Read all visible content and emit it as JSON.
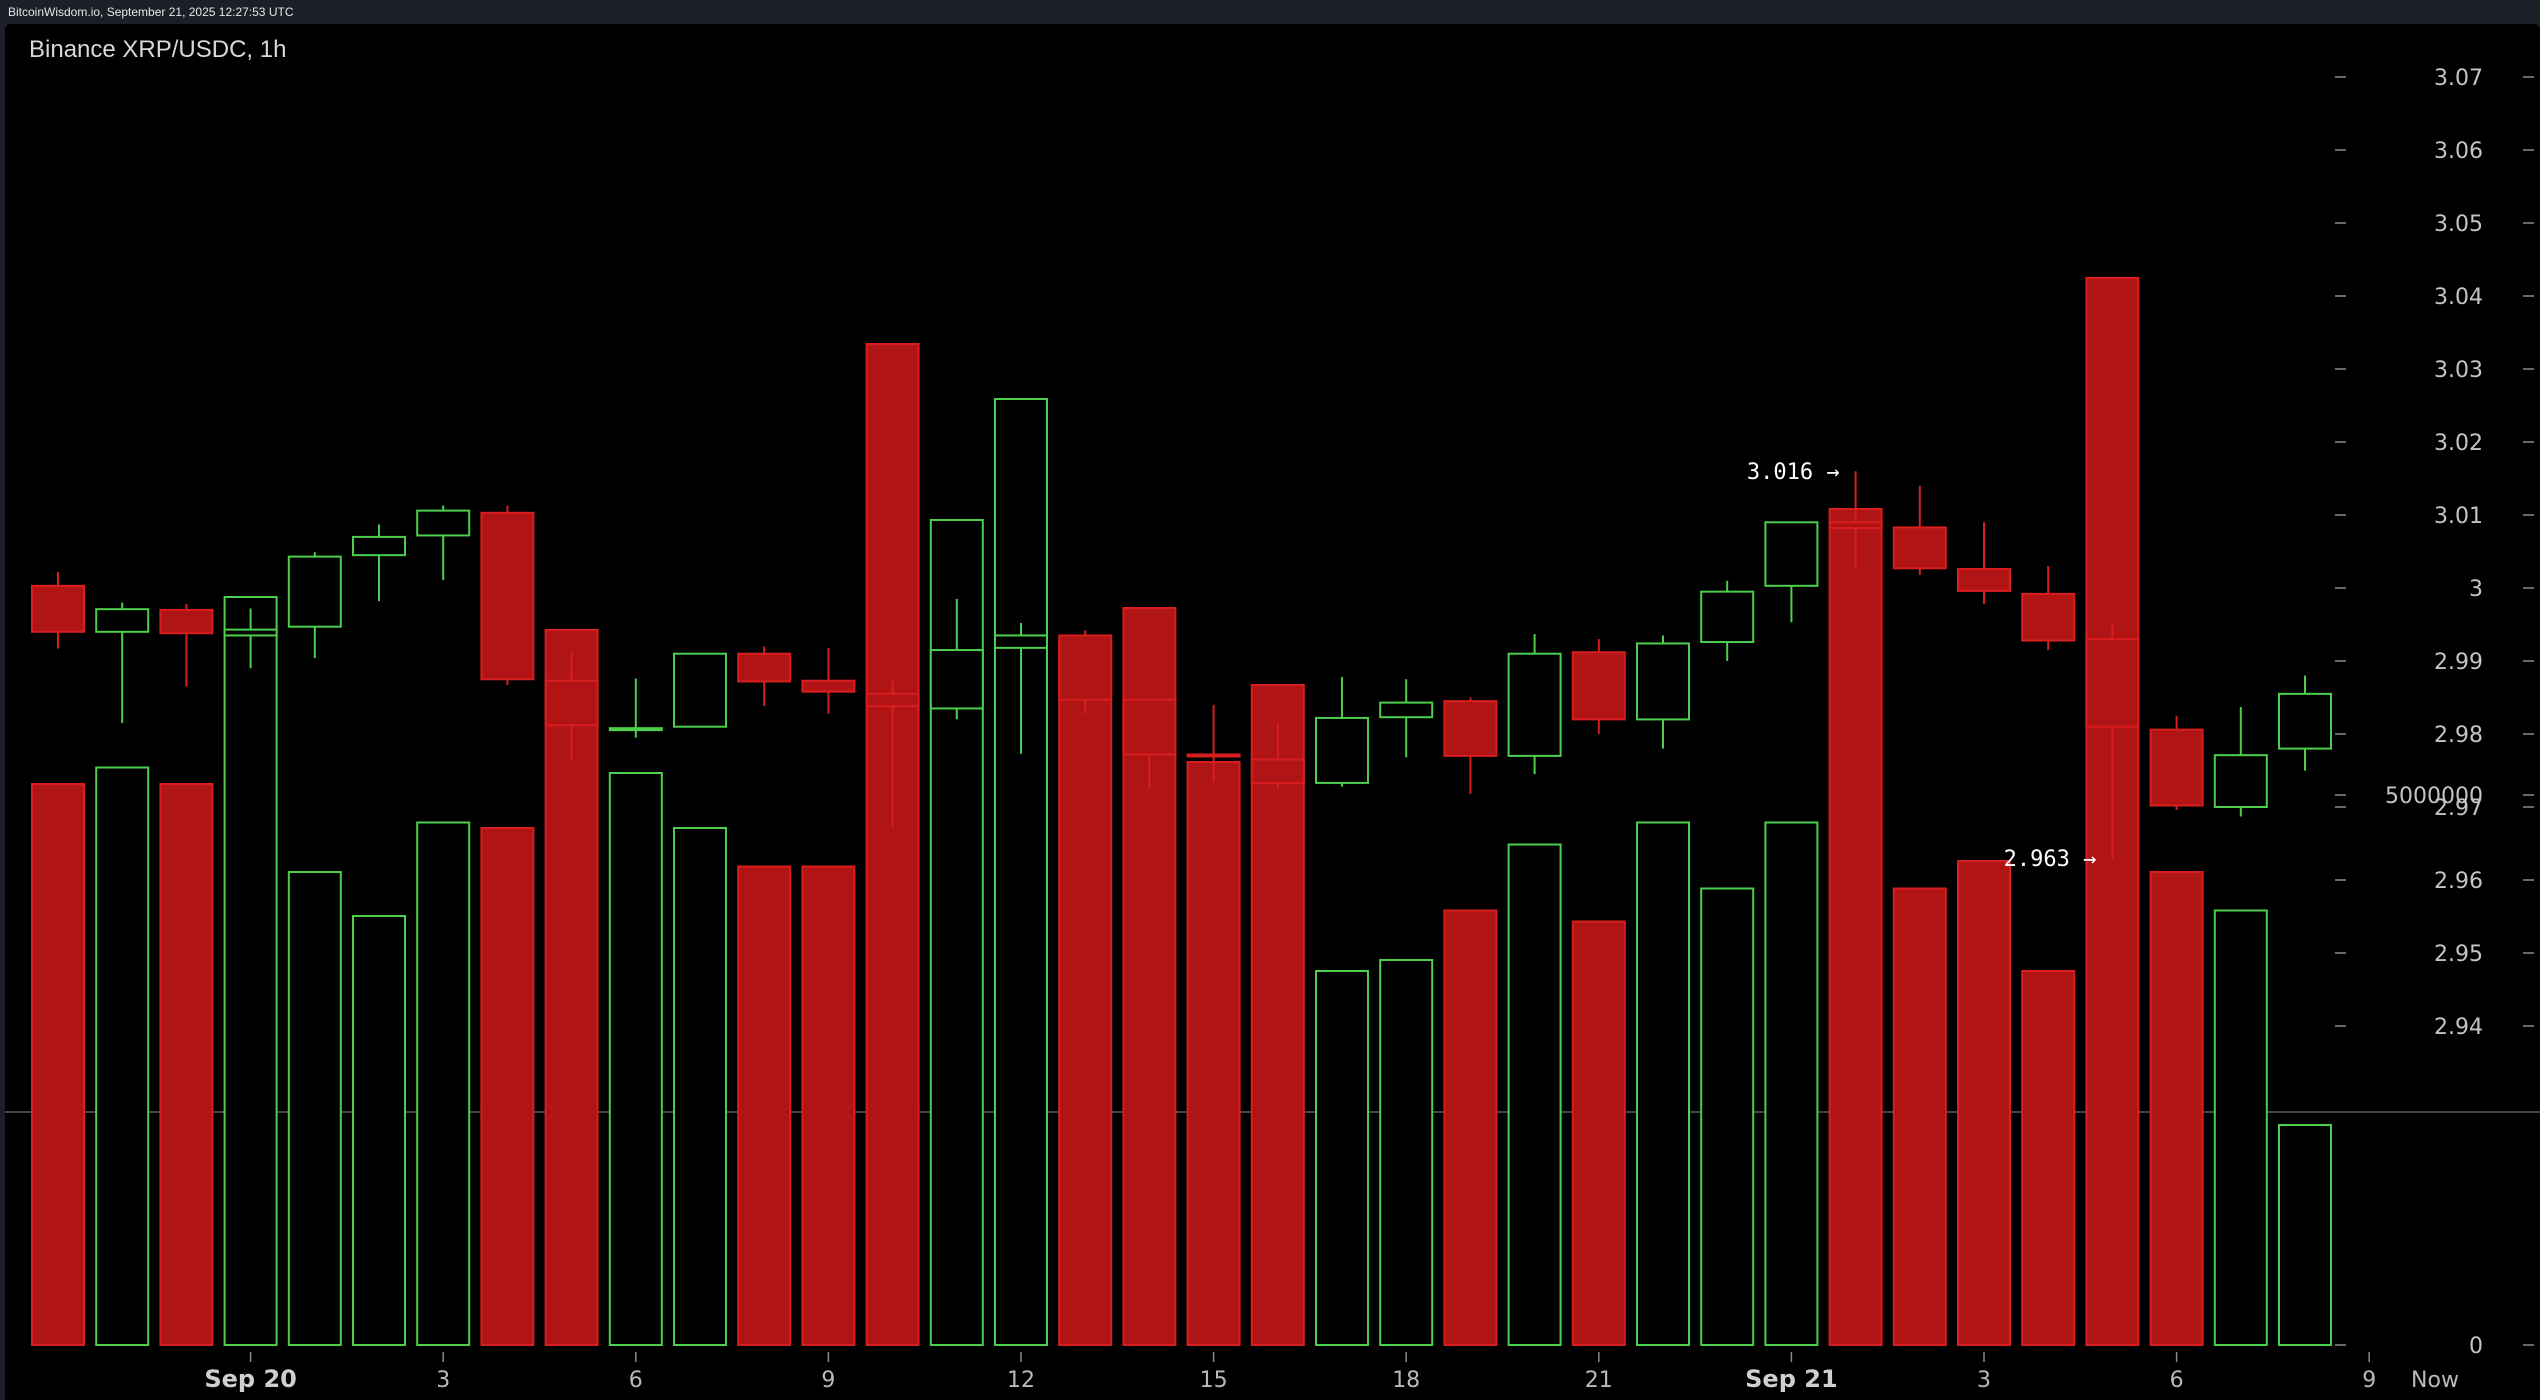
{
  "header": {
    "source_line": "BitcoinWisdom.io, September 21, 2025 12:27:53 UTC"
  },
  "colors": {
    "up": "#4ccf4c",
    "down": "#b01414",
    "down_stroke": "#d81e1e",
    "axis": "#8a8a8a"
  },
  "chart_data": {
    "type": "candlestick",
    "title": "Binance XRP/USDC, 1h",
    "price_ylim": [
      2.93,
      3.08
    ],
    "price_ticks": [
      "3.07",
      "3.06",
      "3.05",
      "3.04",
      "3.03",
      "3.02",
      "3.01",
      "3",
      "2.99",
      "2.98",
      "2.97",
      "2.96",
      "2.95",
      "2.94"
    ],
    "volume_ticks": [
      "5000000",
      "0"
    ],
    "volume_ylim": [
      0,
      10000000
    ],
    "x_ticks": [
      {
        "label": "Sep 20",
        "at": 3,
        "bold": true
      },
      {
        "label": "3",
        "at": 6,
        "bold": false
      },
      {
        "label": "6",
        "at": 9,
        "bold": false
      },
      {
        "label": "9",
        "at": 12,
        "bold": false
      },
      {
        "label": "12",
        "at": 15,
        "bold": false
      },
      {
        "label": "15",
        "at": 18,
        "bold": false
      },
      {
        "label": "18",
        "at": 21,
        "bold": false
      },
      {
        "label": "21",
        "at": 24,
        "bold": false
      },
      {
        "label": "Sep 21",
        "at": 27,
        "bold": true
      },
      {
        "label": "3",
        "at": 30,
        "bold": false
      },
      {
        "label": "6",
        "at": 33,
        "bold": false
      },
      {
        "label": "9",
        "at": 36,
        "bold": false
      },
      {
        "label": "Now",
        "at": 37.1,
        "bold": false
      }
    ],
    "candles": [
      {
        "o": 3.0003,
        "h": 3.0022,
        "l": 2.9917,
        "c": 2.994,
        "v": 5100000
      },
      {
        "o": 2.994,
        "h": 2.998,
        "l": 2.9815,
        "c": 2.9971,
        "v": 5250000
      },
      {
        "o": 2.997,
        "h": 2.9978,
        "l": 2.9865,
        "c": 2.9938,
        "v": 5100000
      },
      {
        "o": 2.9935,
        "h": 2.9972,
        "l": 2.989,
        "c": 2.9943,
        "v": 6800000
      },
      {
        "o": 2.9947,
        "h": 3.0049,
        "l": 2.9904,
        "c": 3.0043,
        "v": 4300000
      },
      {
        "o": 3.0045,
        "h": 3.0087,
        "l": 2.9982,
        "c": 3.007,
        "v": 3900000
      },
      {
        "o": 3.0072,
        "h": 3.0113,
        "l": 3.0011,
        "c": 3.0106,
        "v": 4750000
      },
      {
        "o": 3.0103,
        "h": 3.0113,
        "l": 2.9867,
        "c": 2.9875,
        "v": 4700000
      },
      {
        "o": 2.9873,
        "h": 2.9912,
        "l": 2.9764,
        "c": 2.9812,
        "v": 6500000
      },
      {
        "o": 2.9806,
        "h": 2.9876,
        "l": 2.9795,
        "c": 2.9808,
        "v": 5200000
      },
      {
        "o": 2.981,
        "h": 2.991,
        "l": 2.981,
        "c": 2.991,
        "v": 4700000
      },
      {
        "o": 2.991,
        "h": 2.992,
        "l": 2.9838,
        "c": 2.9872,
        "v": 4350000
      },
      {
        "o": 2.9873,
        "h": 2.9918,
        "l": 2.9828,
        "c": 2.9858,
        "v": 4350000
      },
      {
        "o": 2.9855,
        "h": 2.9873,
        "l": 2.9672,
        "c": 2.9838,
        "v": 9100000
      },
      {
        "o": 2.9835,
        "h": 2.9985,
        "l": 2.982,
        "c": 2.9915,
        "v": 7500000
      },
      {
        "o": 2.9918,
        "h": 2.9952,
        "l": 2.9773,
        "c": 2.9935,
        "v": 8600000
      },
      {
        "o": 2.9935,
        "h": 2.9942,
        "l": 2.9828,
        "c": 2.9847,
        "v": 6400000
      },
      {
        "o": 2.9847,
        "h": 2.9847,
        "l": 2.9725,
        "c": 2.9772,
        "v": 6700000
      },
      {
        "o": 2.9772,
        "h": 2.984,
        "l": 2.9734,
        "c": 2.977,
        "v": 5300000
      },
      {
        "o": 2.9765,
        "h": 2.9815,
        "l": 2.9726,
        "c": 2.9733,
        "v": 6000000
      },
      {
        "o": 2.9733,
        "h": 2.9878,
        "l": 2.9728,
        "c": 2.9822,
        "v": 3400000
      },
      {
        "o": 2.9823,
        "h": 2.9875,
        "l": 2.9768,
        "c": 2.9843,
        "v": 3500000
      },
      {
        "o": 2.9845,
        "h": 2.985,
        "l": 2.9718,
        "c": 2.977,
        "v": 3950000
      },
      {
        "o": 2.977,
        "h": 2.9937,
        "l": 2.9745,
        "c": 2.991,
        "v": 4550000
      },
      {
        "o": 2.9912,
        "h": 2.993,
        "l": 2.98,
        "c": 2.982,
        "v": 3850000
      },
      {
        "o": 2.982,
        "h": 2.9935,
        "l": 2.978,
        "c": 2.9924,
        "v": 4750000
      },
      {
        "o": 2.9926,
        "h": 3.001,
        "l": 2.99,
        "c": 2.9995,
        "v": 4150000
      },
      {
        "o": 3.0003,
        "h": 3.0091,
        "l": 2.9953,
        "c": 3.009,
        "v": 4750000
      },
      {
        "o": 3.009,
        "h": 3.016,
        "l": 3.0028,
        "c": 3.0082,
        "v": 7600000
      },
      {
        "o": 3.0083,
        "h": 3.014,
        "l": 3.0018,
        "c": 3.0027,
        "v": 4150000
      },
      {
        "o": 3.0026,
        "h": 3.009,
        "l": 2.9978,
        "c": 2.9996,
        "v": 4400000
      },
      {
        "o": 2.9992,
        "h": 3.003,
        "l": 2.9915,
        "c": 2.9928,
        "v": 3400000
      },
      {
        "o": 2.993,
        "h": 2.995,
        "l": 2.963,
        "c": 2.981,
        "v": 9700000
      },
      {
        "o": 2.9806,
        "h": 2.9825,
        "l": 2.9696,
        "c": 2.9702,
        "v": 4300000
      },
      {
        "o": 2.97,
        "h": 2.9837,
        "l": 2.9687,
        "c": 2.9771,
        "v": 3950000
      },
      {
        "o": 2.978,
        "h": 2.988,
        "l": 2.975,
        "c": 2.9855,
        "v": 2000000
      }
    ],
    "annotations": [
      {
        "text": "3.016 →",
        "price": 3.016,
        "candle": 28
      },
      {
        "text": "2.963 →",
        "price": 2.963,
        "candle": 32
      }
    ]
  }
}
